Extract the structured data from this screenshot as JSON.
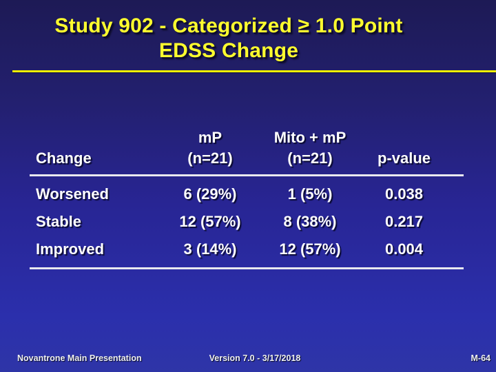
{
  "slide": {
    "title_line1": "Study 902 - Categorized ≥ 1.0 Point",
    "title_line2": "EDSS Change"
  },
  "table": {
    "header": {
      "change": "Change",
      "mp_line1": "mP",
      "mp_line2": "(n=21)",
      "mito_line1": "Mito + mP",
      "mito_line2": "(n=21)",
      "p_value": "p-value"
    },
    "rows": [
      {
        "change": "Worsened",
        "mp": "6 (29%)",
        "mito_mp": "1 (5%)",
        "p_value": "0.038"
      },
      {
        "change": "Stable",
        "mp": "12 (57%)",
        "mito_mp": "8 (38%)",
        "p_value": "0.217"
      },
      {
        "change": "Improved",
        "mp": "3 (14%)",
        "mito_mp": "12 (57%)",
        "p_value": "0.004"
      }
    ]
  },
  "footer": {
    "left": "Novantrone Main Presentation",
    "center": "Version 7.0 - 3/17/2018",
    "right": "M-64"
  },
  "colors": {
    "title_yellow": "#ffff2e",
    "rule_yellow": "#f0f000",
    "table_text": "#ffffff",
    "table_line": "#e9e9ef",
    "background_top": "#1d1a55",
    "background_bottom": "#2e35a7"
  }
}
